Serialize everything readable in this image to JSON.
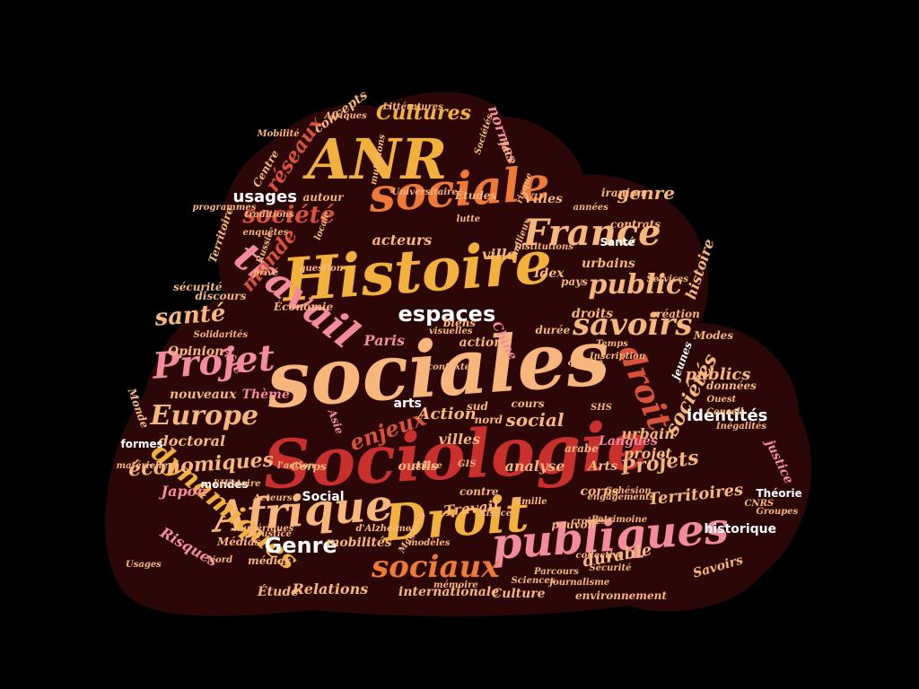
{
  "colors": {
    "background": "#000000",
    "cloud": "#2b0707",
    "palette": {
      "red": "#c9302c",
      "yellow": "#f2b13d",
      "orange": "#ee7a37",
      "peach": "#f7b77c",
      "pink": "#f28c9a",
      "white": "#ffffff",
      "rust": "#d9533a"
    }
  },
  "words": [
    {
      "text": "Sociologie",
      "color": "red"
    },
    {
      "text": "sociales",
      "color": "peach"
    },
    {
      "text": "Histoire",
      "color": "yellow"
    },
    {
      "text": "ANR",
      "color": "yellow"
    },
    {
      "text": "sociale",
      "color": "orange"
    },
    {
      "text": "Droit",
      "color": "yellow"
    },
    {
      "text": "publiques",
      "color": "pink"
    },
    {
      "text": "Afrique",
      "color": "peach"
    },
    {
      "text": "travail",
      "color": "pink"
    },
    {
      "text": "Projet",
      "color": "pink"
    },
    {
      "text": "France",
      "color": "peach"
    },
    {
      "text": "savoirs",
      "color": "peach"
    },
    {
      "text": "droit",
      "color": "rust"
    },
    {
      "text": "sociaux",
      "color": "orange"
    },
    {
      "text": "espaces",
      "color": "white"
    },
    {
      "text": "Europe",
      "color": "peach"
    },
    {
      "text": "dynamiques",
      "color": "yellow"
    },
    {
      "text": "société",
      "color": "rust"
    },
    {
      "text": "public",
      "color": "peach"
    },
    {
      "text": "santé",
      "color": "peach"
    },
    {
      "text": "sociétés",
      "color": "peach"
    },
    {
      "text": "Cultures",
      "color": "yellow"
    },
    {
      "text": "Genre",
      "color": "white"
    },
    {
      "text": "enjeux",
      "color": "rust"
    },
    {
      "text": "économiques",
      "color": "peach"
    },
    {
      "text": "Projets",
      "color": "peach"
    },
    {
      "text": "identités",
      "color": "white"
    },
    {
      "text": "réseaux",
      "color": "rust"
    },
    {
      "text": "usages",
      "color": "white"
    },
    {
      "text": "genre",
      "color": "peach"
    },
    {
      "text": "monde",
      "color": "rust"
    },
    {
      "text": "Territoires",
      "color": "peach"
    },
    {
      "text": "Relations",
      "color": "peach"
    },
    {
      "text": "publics",
      "color": "peach"
    },
    {
      "text": "social",
      "color": "peach"
    },
    {
      "text": "durable",
      "color": "peach"
    },
    {
      "text": "Action",
      "color": "peach"
    },
    {
      "text": "villes",
      "color": "peach"
    },
    {
      "text": "Travail",
      "color": "peach"
    },
    {
      "text": "Paris",
      "color": "pink"
    },
    {
      "text": "historique",
      "color": "white"
    },
    {
      "text": "Social",
      "color": "white"
    },
    {
      "text": "acteurs",
      "color": "peach"
    },
    {
      "text": "ville",
      "color": "peach"
    },
    {
      "text": "projet",
      "color": "peach"
    },
    {
      "text": "urbain",
      "color": "peach"
    },
    {
      "text": "analyse",
      "color": "peach"
    },
    {
      "text": "Culture",
      "color": "peach"
    },
    {
      "text": "Langues",
      "color": "pink"
    },
    {
      "text": "histoire",
      "color": "peach"
    },
    {
      "text": "Risques",
      "color": "pink"
    },
    {
      "text": "Japon",
      "color": "pink"
    },
    {
      "text": "doctoral",
      "color": "peach"
    },
    {
      "text": "internationale",
      "color": "peach"
    },
    {
      "text": "Étude",
      "color": "peach"
    },
    {
      "text": "Thème",
      "color": "pink"
    },
    {
      "text": "normes",
      "color": "pink"
    },
    {
      "text": "mobilités",
      "color": "peach"
    },
    {
      "text": "droits",
      "color": "peach"
    },
    {
      "text": "urbains",
      "color": "peach"
    },
    {
      "text": "contrats",
      "color": "peach"
    },
    {
      "text": "Santé",
      "color": "white"
    },
    {
      "text": "Villes",
      "color": "peach"
    },
    {
      "text": "Idex",
      "color": "peach"
    },
    {
      "text": "pays",
      "color": "peach"
    },
    {
      "text": "création",
      "color": "peach"
    },
    {
      "text": "outils",
      "color": "peach"
    },
    {
      "text": "cours",
      "color": "peach"
    },
    {
      "text": "action",
      "color": "peach"
    },
    {
      "text": "Arts",
      "color": "peach"
    },
    {
      "text": "arts",
      "color": "white"
    },
    {
      "text": "justice",
      "color": "pink"
    },
    {
      "text": "corps",
      "color": "peach"
    },
    {
      "text": "Savoirs",
      "color": "peach"
    },
    {
      "text": "environnement",
      "color": "peach"
    },
    {
      "text": "médias",
      "color": "peach"
    },
    {
      "text": "Opinion",
      "color": "peach"
    },
    {
      "text": "Économie",
      "color": "peach"
    },
    {
      "text": "nouveaux",
      "color": "peach"
    },
    {
      "text": "Pôle",
      "color": "pink"
    },
    {
      "text": "concepts",
      "color": "peach"
    },
    {
      "text": "autour",
      "color": "peach"
    },
    {
      "text": "Centre",
      "color": "peach"
    },
    {
      "text": "Territoire",
      "color": "peach"
    },
    {
      "text": "discours",
      "color": "peach"
    },
    {
      "text": "sécurité",
      "color": "peach"
    },
    {
      "text": "pouvoir",
      "color": "peach"
    },
    {
      "text": "jeunes",
      "color": "white"
    },
    {
      "text": "données",
      "color": "peach"
    },
    {
      "text": "Modes",
      "color": "peach"
    },
    {
      "text": "iranien",
      "color": "peach"
    },
    {
      "text": "Études",
      "color": "peach"
    },
    {
      "text": "biens",
      "color": "peach"
    },
    {
      "text": "durée",
      "color": "peach"
    },
    {
      "text": "Chine",
      "color": "pink"
    },
    {
      "text": "formes",
      "color": "white"
    },
    {
      "text": "mondes",
      "color": "white"
    },
    {
      "text": "Médias",
      "color": "peach"
    },
    {
      "text": "Théorie",
      "color": "white"
    },
    {
      "text": "Monde",
      "color": "peach"
    },
    {
      "text": "contre",
      "color": "peach"
    },
    {
      "text": "face",
      "color": "peach"
    },
    {
      "text": "arabe",
      "color": "peach"
    },
    {
      "text": "nord",
      "color": "peach"
    },
    {
      "text": "sud",
      "color": "peach"
    },
    {
      "text": "Asie",
      "color": "pink"
    },
    {
      "text": "Corps",
      "color": "peach"
    },
    {
      "text": "SHS",
      "color": "peach"
    },
    {
      "text": "GIS",
      "color": "peach"
    },
    {
      "text": "Ouest",
      "color": "peach"
    },
    {
      "text": "Consell",
      "color": "peach"
    },
    {
      "text": "Inégalités",
      "color": "peach"
    },
    {
      "text": "Groupes",
      "color": "peach"
    },
    {
      "text": "CNRS",
      "color": "peach"
    },
    {
      "text": "Sécurité",
      "color": "peach"
    },
    {
      "text": "Parcours",
      "color": "peach"
    },
    {
      "text": "journalisme",
      "color": "peach"
    },
    {
      "text": "Alsace",
      "color": "peach"
    },
    {
      "text": "famille",
      "color": "peach"
    },
    {
      "text": "Maghreb",
      "color": "peach"
    },
    {
      "text": "Acteurs",
      "color": "peach"
    },
    {
      "text": "Justice",
      "color": "peach"
    },
    {
      "text": "l'action",
      "color": "peach"
    },
    {
      "text": "Russie",
      "color": "peach"
    },
    {
      "text": "privé",
      "color": "peach"
    },
    {
      "text": "enquêtes",
      "color": "peach"
    },
    {
      "text": "mutations",
      "color": "peach"
    },
    {
      "text": "Universitaire",
      "color": "peach"
    },
    {
      "text": "Sociétés",
      "color": "peach"
    },
    {
      "text": "Littératures",
      "color": "peach"
    },
    {
      "text": "traditions",
      "color": "peach"
    },
    {
      "text": "l'Histoire",
      "color": "peach"
    },
    {
      "text": "croisés",
      "color": "peach"
    },
    {
      "text": "numériques",
      "color": "peach"
    },
    {
      "text": "Solidarités",
      "color": "peach"
    },
    {
      "text": "question",
      "color": "peach"
    },
    {
      "text": "visuelles",
      "color": "peach"
    },
    {
      "text": "milieux",
      "color": "peach"
    },
    {
      "text": "lutte",
      "color": "peach"
    },
    {
      "text": "Institutions",
      "color": "peach"
    },
    {
      "text": "locale",
      "color": "peach"
    },
    {
      "text": "années",
      "color": "peach"
    },
    {
      "text": "Services",
      "color": "peach"
    },
    {
      "text": "risque",
      "color": "peach"
    },
    {
      "text": "Sciences",
      "color": "peach"
    },
    {
      "text": "modèles",
      "color": "peach"
    },
    {
      "text": "mémoire",
      "color": "peach"
    },
    {
      "text": "Cohésion",
      "color": "peach"
    },
    {
      "text": "engagements",
      "color": "peach"
    },
    {
      "text": "d'Alzheimer",
      "color": "peach"
    },
    {
      "text": "programmes",
      "color": "peach"
    },
    {
      "text": "Mobilité",
      "color": "peach"
    },
    {
      "text": "Patrimoine",
      "color": "peach"
    },
    {
      "text": "collective",
      "color": "peach"
    },
    {
      "text": "Nord",
      "color": "peach"
    },
    {
      "text": "matérielle",
      "color": "peach"
    },
    {
      "text": "Usages",
      "color": "peach"
    },
    {
      "text": "qualité",
      "color": "peach"
    },
    {
      "text": "Inscription",
      "color": "peach"
    },
    {
      "text": "Temps",
      "color": "peach"
    },
    {
      "text": "contexte",
      "color": "peach"
    },
    {
      "text": "police",
      "color": "peach"
    },
    {
      "text": "Afriques",
      "color": "peach"
    },
    {
      "text": "grands",
      "color": "peach"
    }
  ]
}
